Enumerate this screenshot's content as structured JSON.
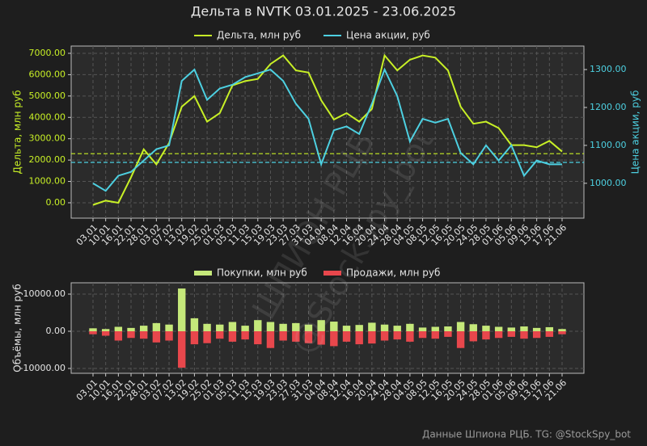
{
  "title": "Дельта в NVTK 03.01.2025 - 23.06.2025",
  "watermark": [
    "ШПИОН РЦБ",
    "@StockSpy_bot"
  ],
  "footer": "Данные Шпиона РЦБ. TG: @StockSpy_bot",
  "chart_data": [
    {
      "type": "line",
      "ylabel": "Дельта, млн руб",
      "y2label": "Цена акции, руб",
      "categories": [
        "03.01",
        "10.01",
        "16.01",
        "22.01",
        "28.01",
        "03.02",
        "07.02",
        "13.02",
        "19.02",
        "25.02",
        "01.03",
        "05.03",
        "11.03",
        "15.03",
        "19.03",
        "23.03",
        "27.03",
        "31.03",
        "04.04",
        "08.04",
        "12.04",
        "16.04",
        "20.04",
        "24.04",
        "28.04",
        "04.05",
        "08.05",
        "12.05",
        "16.05",
        "20.05",
        "24.05",
        "28.05",
        "01.06",
        "05.06",
        "09.06",
        "13.06",
        "17.06",
        "21.06"
      ],
      "series": [
        {
          "name": "Дельта, млн руб",
          "color": "#c8f026",
          "axis": "y",
          "values": [
            -100,
            100,
            0,
            1200,
            2500,
            1800,
            2800,
            4500,
            5000,
            3800,
            4200,
            5500,
            5700,
            5800,
            6500,
            6900,
            6200,
            6100,
            4800,
            3900,
            4200,
            3800,
            4400,
            6900,
            6200,
            6700,
            6900,
            6800,
            6200,
            4500,
            3700,
            3800,
            3500,
            2700,
            2700,
            2600,
            2900,
            2400
          ]
        },
        {
          "name": "Цена акции, руб",
          "color": "#4dd0e1",
          "axis": "y2",
          "values": [
            1000,
            980,
            1020,
            1030,
            1060,
            1090,
            1100,
            1270,
            1300,
            1220,
            1250,
            1260,
            1280,
            1290,
            1300,
            1270,
            1210,
            1170,
            1050,
            1140,
            1150,
            1130,
            1210,
            1300,
            1230,
            1110,
            1170,
            1160,
            1170,
            1080,
            1050,
            1100,
            1060,
            1100,
            1020,
            1060,
            1050,
            1050
          ]
        }
      ],
      "hlines": [
        {
          "axis": "y",
          "value": 2300,
          "color": "#c8f026"
        },
        {
          "axis": "y2",
          "value": 1055,
          "color": "#4dd0e1"
        }
      ],
      "ylim": [
        -720,
        7340
      ],
      "yticks": [
        {
          "value": 0,
          "label": "0.00"
        },
        {
          "value": 1000,
          "label": "1000.00"
        },
        {
          "value": 2000,
          "label": "2000.00"
        },
        {
          "value": 3000,
          "label": "3000.00"
        },
        {
          "value": 4000,
          "label": "4000.00"
        },
        {
          "value": 5000,
          "label": "5000.00"
        },
        {
          "value": 6000,
          "label": "6000.00"
        },
        {
          "value": 7000,
          "label": "7000.00"
        }
      ],
      "y2lim": [
        908,
        1362
      ],
      "y2ticks": [
        {
          "value": 1000,
          "label": "1000.00"
        },
        {
          "value": 1100,
          "label": "1100.00"
        },
        {
          "value": 1200,
          "label": "1200.00"
        },
        {
          "value": 1300,
          "label": "1300.00"
        }
      ],
      "grid": true
    },
    {
      "type": "bar",
      "ylabel": "Объёмы, млн руб",
      "categories": [
        "03.01",
        "10.01",
        "16.01",
        "22.01",
        "28.01",
        "03.02",
        "07.02",
        "13.02",
        "19.02",
        "25.02",
        "01.03",
        "05.03",
        "11.03",
        "15.03",
        "19.03",
        "23.03",
        "27.03",
        "31.03",
        "04.04",
        "08.04",
        "12.04",
        "16.04",
        "20.04",
        "24.04",
        "28.04",
        "04.05",
        "08.05",
        "12.05",
        "16.05",
        "20.05",
        "24.05",
        "28.05",
        "01.06",
        "05.06",
        "09.06",
        "13.06",
        "17.06",
        "21.06"
      ],
      "series": [
        {
          "name": "Покупки, млн руб",
          "color": "#c5e87a",
          "values": [
            800,
            600,
            1200,
            900,
            1500,
            2200,
            1800,
            11500,
            3500,
            2000,
            1800,
            2500,
            1500,
            3000,
            2500,
            2000,
            2200,
            1800,
            3000,
            2600,
            1500,
            1700,
            2300,
            1800,
            1500,
            2000,
            1000,
            1200,
            1300,
            2500,
            1900,
            1500,
            1200,
            1000,
            1300,
            900,
            1100,
            600
          ]
        },
        {
          "name": "Продажи, млн руб",
          "color": "#e8474c",
          "values": [
            -800,
            -1200,
            -2500,
            -1800,
            -2000,
            -3000,
            -2500,
            -9800,
            -3500,
            -3200,
            -2000,
            -2800,
            -2200,
            -3500,
            -4500,
            -2500,
            -2800,
            -3200,
            -3600,
            -4000,
            -2800,
            -3500,
            -3300,
            -2500,
            -2200,
            -2800,
            -1800,
            -2000,
            -1500,
            -4500,
            -2700,
            -2200,
            -1800,
            -1500,
            -2000,
            -1800,
            -1500,
            -800
          ]
        }
      ],
      "ylim": [
        -11300,
        13040
      ],
      "yticks": [
        {
          "value": -10000,
          "label": "-10000.00"
        },
        {
          "value": 0,
          "label": "0.00"
        },
        {
          "value": 10000,
          "label": "10000.00"
        }
      ],
      "grid": true
    }
  ]
}
